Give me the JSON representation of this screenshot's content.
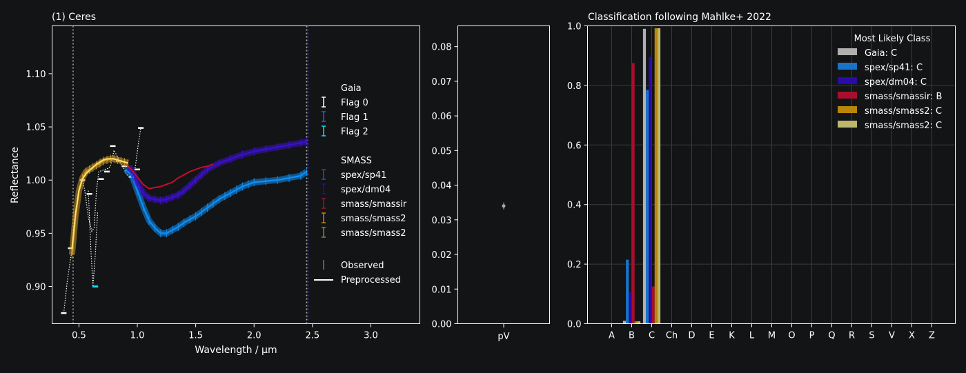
{
  "chart_data": [
    {
      "type": "line",
      "title": "(1) Ceres",
      "xlabel": "Wavelength / μm",
      "ylabel": "Reflectance",
      "xlim": [
        0.27,
        3.42
      ],
      "ylim": [
        0.865,
        1.145
      ],
      "xticks": [
        "0.5",
        "1.0",
        "1.5",
        "2.0",
        "2.5",
        "3.0"
      ],
      "xtick_values": [
        0.5,
        1.0,
        1.5,
        2.0,
        2.5,
        3.0
      ],
      "yticks": [
        "0.90",
        "0.95",
        "1.00",
        "1.05",
        "1.10"
      ],
      "ytick_values": [
        0.9,
        0.95,
        1.0,
        1.05,
        1.1
      ],
      "vlines": [
        {
          "x": 0.45,
          "color": "#b0b0b0"
        },
        {
          "x": 2.45,
          "color": "#b0b0b0"
        },
        {
          "x": 2.46,
          "color": "#5533ff"
        }
      ],
      "legend": {
        "groups": [
          {
            "title": "Gaia",
            "entries": [
              {
                "label": "Flag 0",
                "color": "#ffffff",
                "marker": "errorbar"
              },
              {
                "label": "Flag 1",
                "color": "#1f5fff",
                "marker": "errorbar"
              },
              {
                "label": "Flag 2",
                "color": "#00e5ff",
                "marker": "errorbar"
              }
            ]
          },
          {
            "title": "SMASS",
            "entries": [
              {
                "label": "spex/sp41",
                "color": "#0c5fa8",
                "marker": "errorbar"
              },
              {
                "label": "spex/dm04",
                "color": "#2a0aa8",
                "marker": "errorbar"
              },
              {
                "label": "smass/smassir",
                "color": "#a80e2e",
                "marker": "errorbar"
              },
              {
                "label": "smass/smass2",
                "color": "#b8860b",
                "marker": "errorbar"
              },
              {
                "label": "smass/smass2",
                "color": "#8c8340",
                "marker": "errorbar"
              }
            ]
          },
          {
            "title": "",
            "entries": [
              {
                "label": "Observed",
                "color": "#777777",
                "marker": "vline"
              },
              {
                "label": "Preprocessed",
                "color": "#ffffff",
                "marker": "line"
              }
            ]
          }
        ]
      },
      "series": [
        {
          "color": "#ffffff",
          "style": "dotted",
          "x": [
            0.37,
            0.4,
            0.44,
            0.46,
            0.49,
            0.53,
            0.55,
            0.58,
            0.61,
            0.63,
            0.65,
            0.67,
            0.7,
            0.72,
            0.75,
            0.77,
            0.8,
            0.84,
            0.86,
            0.88,
            0.91,
            0.94,
            0.96,
            0.98,
            1.01,
            1.03
          ],
          "y": [
            0.875,
            0.905,
            0.935,
            0.955,
            0.985,
            1.0,
            0.99,
            0.965,
            0.952,
            0.955,
            0.99,
            1.008,
            1.009,
            1.01,
            1.011,
            1.013,
            1.028,
            1.02,
            1.015,
            1.012,
            1.005,
            1.003,
            1.008,
            1.01,
            1.035,
            1.049
          ]
        },
        {
          "color": "#ffffff",
          "style": "dotted",
          "x": [
            0.58,
            0.6,
            0.62,
            0.64,
            0.66
          ],
          "y": [
            0.99,
            0.94,
            0.9,
            0.93,
            0.97
          ]
        },
        {
          "color": "#ffffff",
          "style": "points",
          "x": [
            0.37,
            0.43,
            0.53,
            0.59,
            0.64,
            0.69,
            0.74,
            0.79,
            0.84,
            0.89,
            0.95,
            1.0,
            1.03
          ],
          "y": [
            0.875,
            0.936,
            1.0,
            0.987,
            0.9,
            1.001,
            1.008,
            1.032,
            1.018,
            1.013,
            1.003,
            1.01,
            1.049
          ]
        },
        {
          "color": "#00e5ff",
          "style": "points",
          "x": [
            0.64
          ],
          "y": [
            0.9
          ]
        },
        {
          "color": "#0f8cf0",
          "style": "band",
          "x": [
            0.9,
            0.95,
            1.0,
            1.05,
            1.1,
            1.15,
            1.2,
            1.25,
            1.3,
            1.35,
            1.4,
            1.45,
            1.5,
            1.55,
            1.6,
            1.65,
            1.7,
            1.75,
            1.8,
            1.85,
            1.9,
            1.95,
            2.0,
            2.1,
            2.2,
            2.3,
            2.4,
            2.45
          ],
          "y": [
            1.01,
            1.005,
            0.99,
            0.975,
            0.962,
            0.955,
            0.95,
            0.95,
            0.953,
            0.956,
            0.96,
            0.963,
            0.966,
            0.97,
            0.974,
            0.978,
            0.982,
            0.985,
            0.988,
            0.991,
            0.994,
            0.996,
            0.998,
            0.999,
            1.0,
            1.002,
            1.004,
            1.008
          ]
        },
        {
          "color": "#3a10c8",
          "style": "band",
          "x": [
            0.92,
            0.95,
            1.0,
            1.05,
            1.1,
            1.15,
            1.2,
            1.25,
            1.3,
            1.35,
            1.4,
            1.45,
            1.5,
            1.55,
            1.6,
            1.7,
            1.8,
            1.9,
            2.0,
            2.1,
            2.2,
            2.3,
            2.4,
            2.45
          ],
          "y": [
            1.012,
            1.01,
            0.998,
            0.988,
            0.983,
            0.982,
            0.981,
            0.982,
            0.984,
            0.986,
            0.99,
            0.995,
            1.0,
            1.005,
            1.01,
            1.016,
            1.02,
            1.024,
            1.027,
            1.029,
            1.031,
            1.033,
            1.035,
            1.036
          ]
        },
        {
          "color": "#c0102e",
          "style": "line",
          "x": [
            0.9,
            0.95,
            1.0,
            1.05,
            1.1,
            1.15,
            1.2,
            1.25,
            1.3,
            1.35,
            1.4,
            1.45,
            1.5,
            1.55,
            1.6,
            1.65
          ],
          "y": [
            1.015,
            1.01,
            1.003,
            0.996,
            0.992,
            0.993,
            0.994,
            0.996,
            0.998,
            1.002,
            1.005,
            1.008,
            1.01,
            1.012,
            1.013,
            1.015
          ]
        },
        {
          "color": "#c8952a",
          "style": "band",
          "x": [
            0.44,
            0.47,
            0.5,
            0.53,
            0.56,
            0.59,
            0.62,
            0.65,
            0.68,
            0.71,
            0.74,
            0.77,
            0.8,
            0.83,
            0.86,
            0.89,
            0.92
          ],
          "y": [
            0.93,
            0.965,
            0.99,
            1.002,
            1.008,
            1.01,
            1.012,
            1.014,
            1.016,
            1.018,
            1.019,
            1.02,
            1.02,
            1.019,
            1.018,
            1.017,
            1.016
          ]
        },
        {
          "color": "#ffe066",
          "style": "line",
          "x": [
            0.44,
            0.47,
            0.5,
            0.53,
            0.56,
            0.59,
            0.62,
            0.65,
            0.68,
            0.71,
            0.74,
            0.77,
            0.8,
            0.83,
            0.86,
            0.89,
            0.92
          ],
          "y": [
            0.935,
            0.968,
            0.99,
            1.001,
            1.006,
            1.009,
            1.012,
            1.015,
            1.017,
            1.019,
            1.02,
            1.02,
            1.02,
            1.019,
            1.018,
            1.017,
            1.016
          ]
        }
      ]
    },
    {
      "type": "scatter",
      "xlabel": "pV",
      "ylim": [
        0.0,
        0.086
      ],
      "yticks": [
        "0.00",
        "0.01",
        "0.02",
        "0.03",
        "0.04",
        "0.05",
        "0.06",
        "0.07",
        "0.08"
      ],
      "ytick_values": [
        0,
        0.01,
        0.02,
        0.03,
        0.04,
        0.05,
        0.06,
        0.07,
        0.08
      ],
      "points": [
        {
          "y": 0.034,
          "err": 0.001,
          "color": "#aaaaaa"
        }
      ]
    },
    {
      "type": "bar",
      "title": "Classification following Mahlke+ 2022",
      "categories": [
        "A",
        "B",
        "C",
        "Ch",
        "D",
        "E",
        "K",
        "L",
        "M",
        "O",
        "P",
        "Q",
        "R",
        "S",
        "V",
        "X",
        "Z"
      ],
      "ylim": [
        0.0,
        1.0
      ],
      "yticks": [
        "0.0",
        "0.2",
        "0.4",
        "0.6",
        "0.8",
        "1.0"
      ],
      "ytick_values": [
        0,
        0.2,
        0.4,
        0.6,
        0.8,
        1.0
      ],
      "legend_title": "Most Likely Class",
      "legend_position": "top-right",
      "grid": true,
      "series": [
        {
          "name": "Gaia: C",
          "color": "#b0b0b0",
          "values": [
            0,
            0.01,
            0.99,
            0,
            0,
            0,
            0,
            0,
            0,
            0,
            0,
            0,
            0,
            0,
            0,
            0,
            0
          ]
        },
        {
          "name": "spex/sp41: C",
          "color": "#1a73c8",
          "values": [
            0,
            0.215,
            0.785,
            0,
            0,
            0,
            0,
            0,
            0,
            0,
            0,
            0,
            0,
            0,
            0,
            0,
            0
          ]
        },
        {
          "name": "spex/dm04: C",
          "color": "#2a0aa8",
          "values": [
            0,
            0.105,
            0.895,
            0,
            0,
            0,
            0,
            0,
            0,
            0,
            0,
            0,
            0,
            0,
            0,
            0,
            0
          ]
        },
        {
          "name": "smass/smassir: B",
          "color": "#a80e2e",
          "values": [
            0,
            0.875,
            0.125,
            0,
            0,
            0,
            0,
            0,
            0,
            0,
            0,
            0,
            0,
            0,
            0,
            0,
            0
          ]
        },
        {
          "name": "smass/smass2: C",
          "color": "#b8860b",
          "values": [
            0,
            0.008,
            0.992,
            0,
            0,
            0,
            0,
            0,
            0,
            0,
            0,
            0,
            0,
            0,
            0,
            0,
            0
          ]
        },
        {
          "name": "smass/smass2: C",
          "color": "#bdb76b",
          "values": [
            0,
            0.008,
            0.992,
            0,
            0,
            0,
            0,
            0,
            0,
            0,
            0,
            0,
            0,
            0,
            0,
            0,
            0
          ]
        }
      ]
    }
  ]
}
